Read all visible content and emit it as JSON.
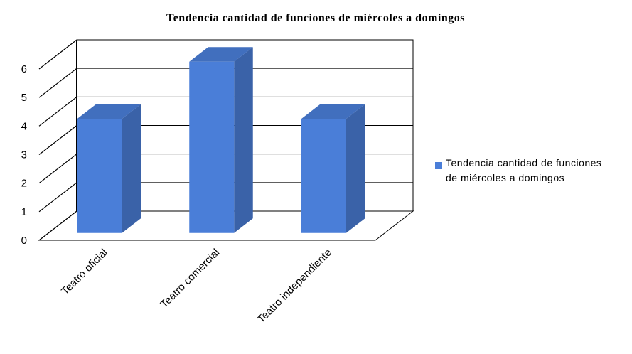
{
  "chart_data": {
    "type": "bar3d",
    "title": "Tendencia cantidad de funciones de miércoles a domingos",
    "categories": [
      "Teatro oficial",
      "Teatro comercial",
      "Teatro independiente"
    ],
    "series": [
      {
        "name": "Tendencia cantidad de funciones de miércoles a domingos",
        "color": "#4a7ed8",
        "values": [
          4,
          6,
          4
        ]
      }
    ],
    "ylim": [
      0,
      6
    ],
    "yticks": [
      0,
      1,
      2,
      3,
      4,
      5,
      6
    ],
    "grid": true,
    "legend": "right"
  }
}
